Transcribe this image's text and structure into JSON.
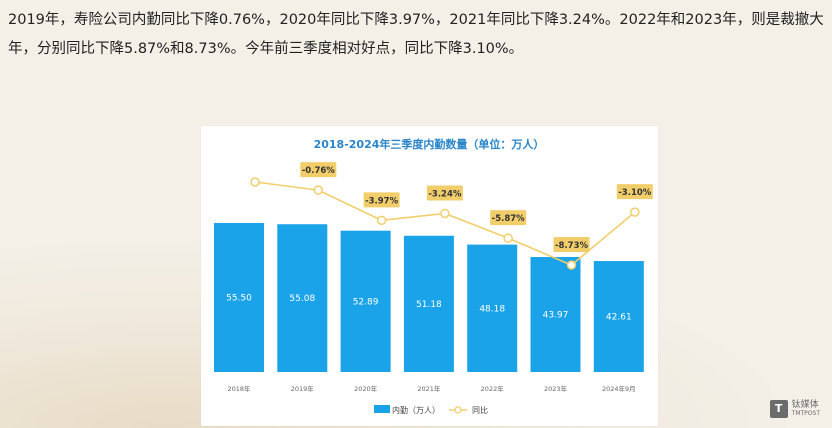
{
  "article": {
    "paragraph": "2019年，寿险公司内勤同比下降0.76%，2020年同比下降3.97%，2021年同比下降3.24%。2022年和2023年，则是裁撤大年，分别同比下降5.87%和8.73%。今年前三季度相对好点，同比下降3.10%。"
  },
  "watermark": {
    "text": "钛媒体",
    "subtext": "TMTPOST",
    "logo": "T"
  },
  "colors": {
    "bar": "#1aa3e8",
    "line": "#f2ce6b",
    "label_box": "#f2ce6b",
    "title": "#2a86c9"
  },
  "chart_data": {
    "type": "bar",
    "title": "2018-2024年三季度内勤数量（单位：万人）",
    "categories": [
      "2018年",
      "2019年",
      "2020年",
      "2021年",
      "2022年",
      "2023年",
      "2024年9月"
    ],
    "series": [
      {
        "name": "内勤（万人）",
        "type": "bar",
        "values": [
          55.5,
          55.08,
          52.89,
          51.18,
          48.18,
          43.97,
          42.61
        ],
        "labels": [
          "55.50",
          "55.08",
          "52.89",
          "51.18",
          "48.18",
          "43.97",
          "42.61"
        ]
      },
      {
        "name": "同比",
        "type": "line",
        "values": [
          null,
          -0.76,
          -3.97,
          -3.24,
          -5.87,
          -8.73,
          -3.1
        ],
        "labels": [
          "",
          "-0.76%",
          "-3.97%",
          "-3.24%",
          "-5.87%",
          "-8.73%",
          "-3.10%"
        ]
      }
    ],
    "legend_position": "bottom",
    "grid": false
  }
}
